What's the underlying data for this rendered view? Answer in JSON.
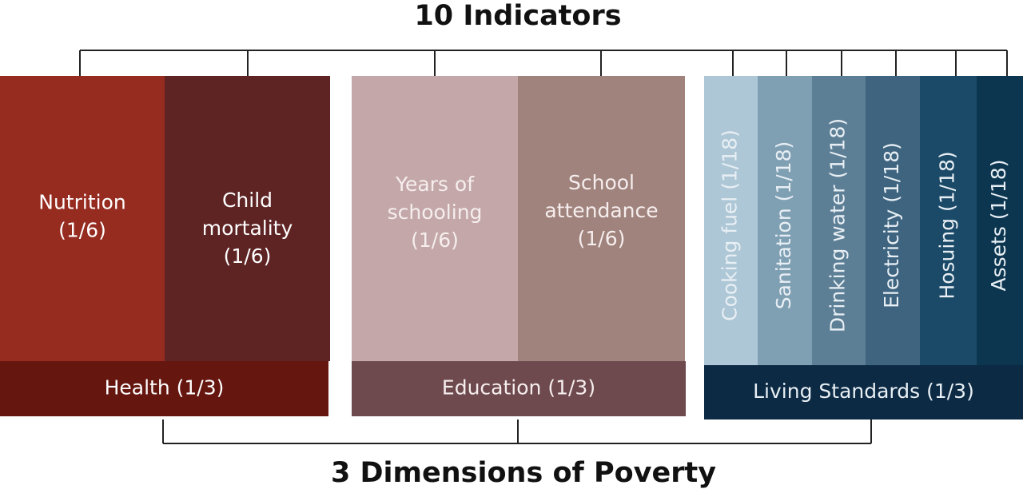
{
  "title": "10 Indicators",
  "subtitle": "3 Dimensions of Poverty",
  "dimensions": [
    {
      "label": "Health (1/3)",
      "color": "#64160f",
      "text_color": "#ffffff",
      "indicators": [
        {
          "lines": [
            "Nutrition",
            "(1/6)"
          ],
          "color": "#962b20"
        },
        {
          "lines": [
            "Child",
            "mortality",
            "(1/6)"
          ],
          "color": "#5e2323"
        }
      ]
    },
    {
      "label": "Education (1/3)",
      "color": "#6e4a4f",
      "text_color": "#f6eeee",
      "indicators": [
        {
          "lines": [
            "Years of",
            "schooling",
            "(1/6)"
          ],
          "color": "#c4a8a9"
        },
        {
          "lines": [
            "School",
            "attendance",
            "(1/6)"
          ],
          "color": "#a0837d"
        }
      ]
    },
    {
      "label": "Living Standards (1/3)",
      "color": "#0c2a44",
      "text_color": "#e8eff4",
      "indicators": [
        {
          "lines": [
            "Cooking fuel (1/18)"
          ],
          "color": "#aec7d6"
        },
        {
          "lines": [
            "Sanitation (1/18)"
          ],
          "color": "#7f9fb3"
        },
        {
          "lines": [
            "Drinking water (1/18)"
          ],
          "color": "#5d7f96"
        },
        {
          "lines": [
            "Electricity (1/18)"
          ],
          "color": "#3e6480"
        },
        {
          "lines": [
            "Hosuing (1/18)"
          ],
          "color": "#1b4a68"
        },
        {
          "lines": [
            "Assets (1/18)"
          ],
          "color": "#0c3650"
        }
      ]
    }
  ]
}
